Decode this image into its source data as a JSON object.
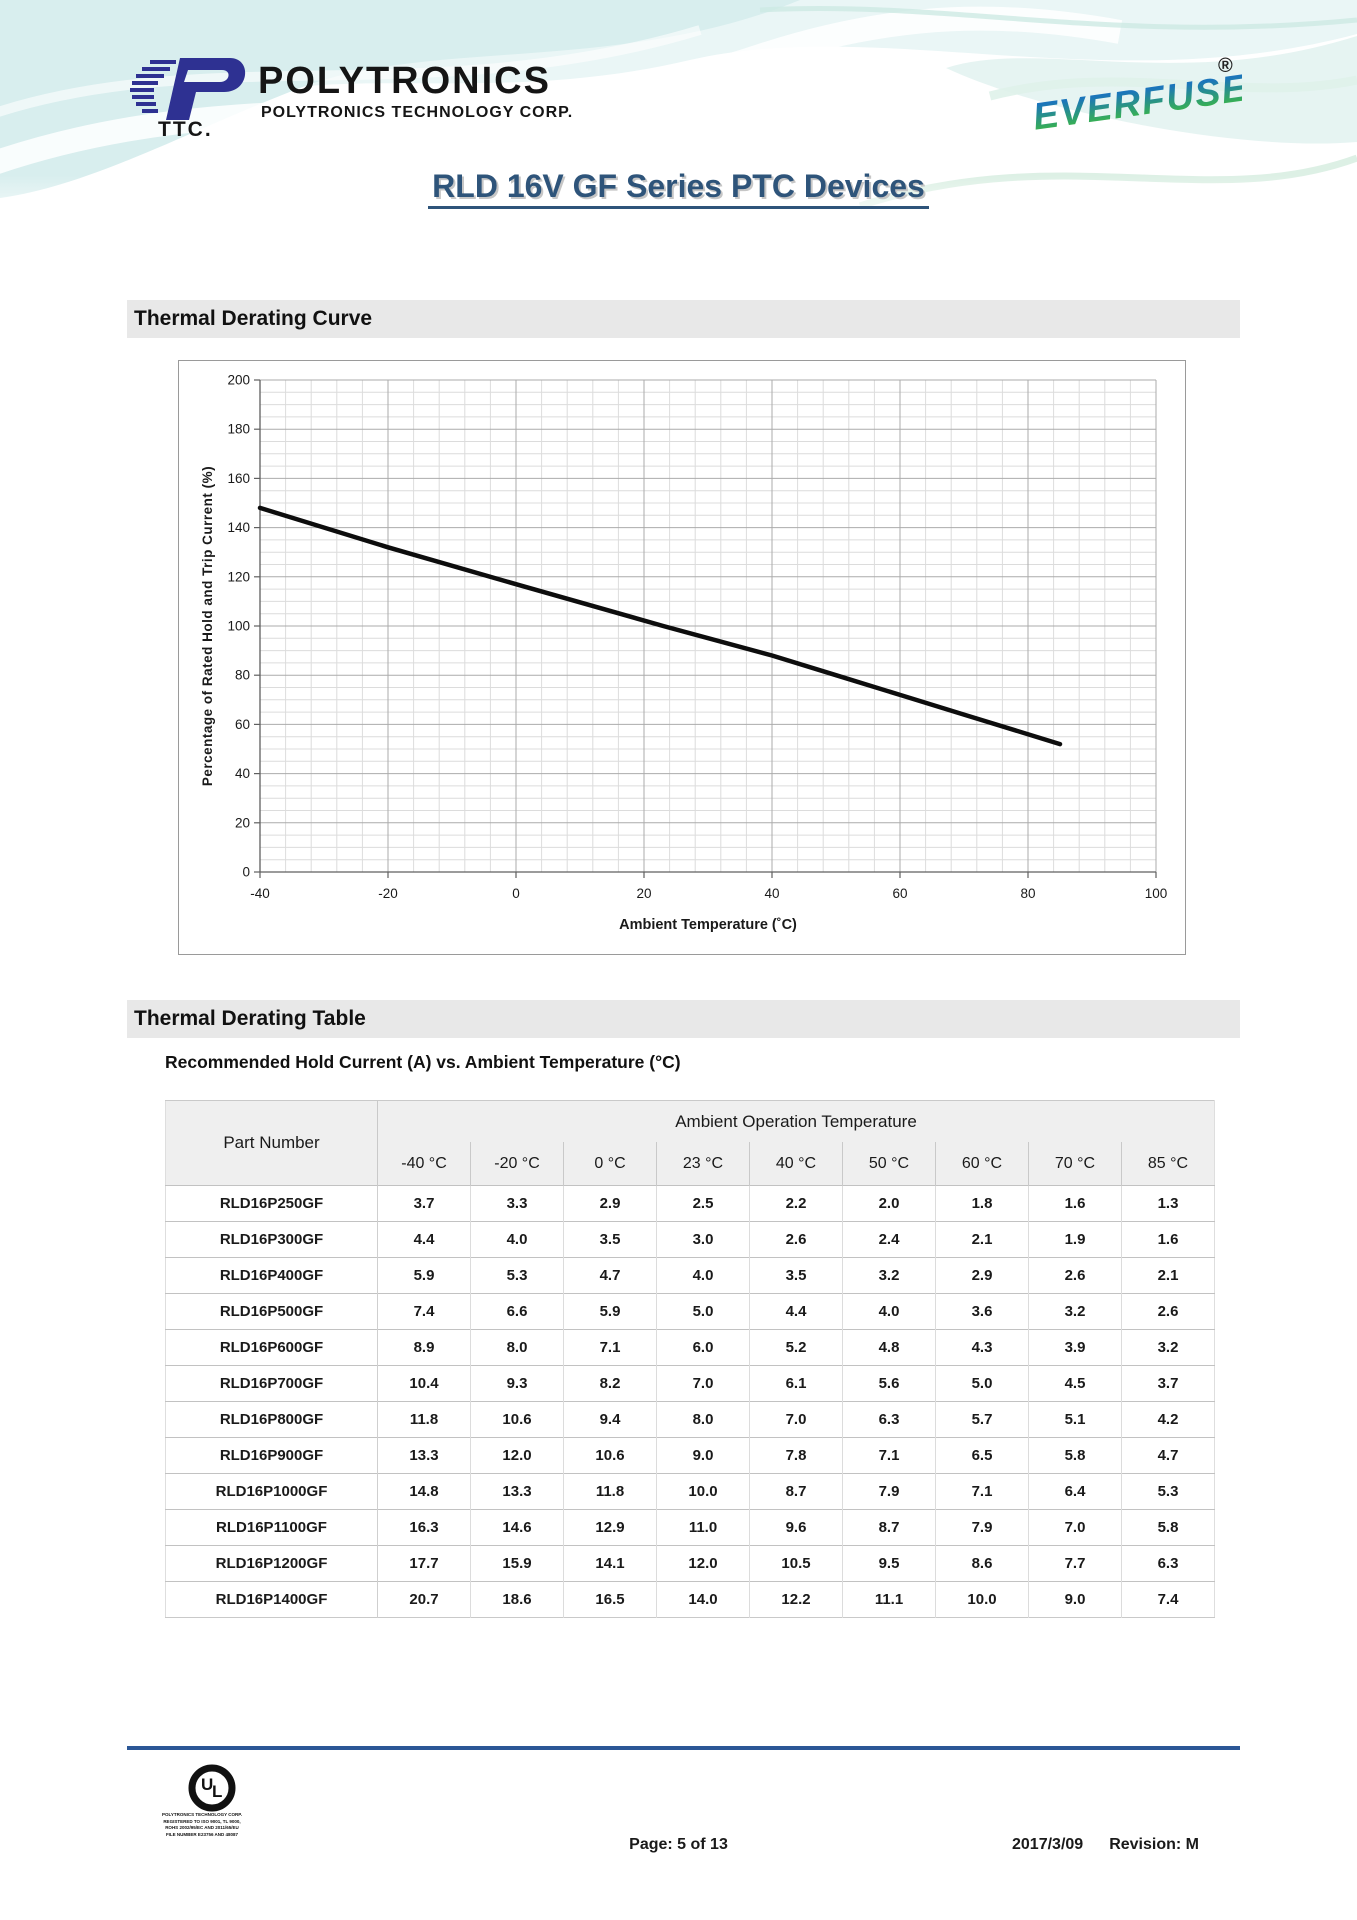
{
  "header": {
    "brand": "POLYTRONICS",
    "brand_sub": "POLYTRONICS TECHNOLOGY CORP.",
    "brand_abbr": "TTC.",
    "everfuse": "EVERFUSE",
    "registered_mark": "®",
    "title": "RLD 16V GF Series PTC Devices"
  },
  "sections": {
    "curve_heading": "Thermal Derating Curve",
    "table_heading": "Thermal Derating Table",
    "table_subtitle": "Recommended Hold Current (A) vs. Ambient Temperature (°C)"
  },
  "chart_data": {
    "type": "line",
    "title": "",
    "xlabel": "Ambient Temperature (˚C)",
    "ylabel": "Percentage of Rated Hold and Trip Current (%)",
    "xlim": [
      -40,
      100
    ],
    "ylim": [
      0,
      200
    ],
    "x_major": 20,
    "x_minor": 4,
    "y_major": 20,
    "y_minor": 5,
    "grid": true,
    "legend": false,
    "series": [
      {
        "name": "derating-line",
        "x": [
          -40,
          -20,
          0,
          23,
          40,
          50,
          60,
          70,
          85
        ],
        "values": [
          148,
          132,
          117,
          100,
          88,
          80,
          72,
          64,
          52
        ]
      }
    ]
  },
  "table": {
    "col1_header": "Part Number",
    "group_header": "Ambient Operation Temperature",
    "temp_headers": [
      "-40 °C",
      "-20 °C",
      "0 °C",
      "23 °C",
      "40 °C",
      "50 °C",
      "60 °C",
      "70 °C",
      "85 °C"
    ],
    "rows": [
      {
        "part": "RLD16P250GF",
        "values": [
          "3.7",
          "3.3",
          "2.9",
          "2.5",
          "2.2",
          "2.0",
          "1.8",
          "1.6",
          "1.3"
        ]
      },
      {
        "part": "RLD16P300GF",
        "values": [
          "4.4",
          "4.0",
          "3.5",
          "3.0",
          "2.6",
          "2.4",
          "2.1",
          "1.9",
          "1.6"
        ]
      },
      {
        "part": "RLD16P400GF",
        "values": [
          "5.9",
          "5.3",
          "4.7",
          "4.0",
          "3.5",
          "3.2",
          "2.9",
          "2.6",
          "2.1"
        ]
      },
      {
        "part": "RLD16P500GF",
        "values": [
          "7.4",
          "6.6",
          "5.9",
          "5.0",
          "4.4",
          "4.0",
          "3.6",
          "3.2",
          "2.6"
        ]
      },
      {
        "part": "RLD16P600GF",
        "values": [
          "8.9",
          "8.0",
          "7.1",
          "6.0",
          "5.2",
          "4.8",
          "4.3",
          "3.9",
          "3.2"
        ]
      },
      {
        "part": "RLD16P700GF",
        "values": [
          "10.4",
          "9.3",
          "8.2",
          "7.0",
          "6.1",
          "5.6",
          "5.0",
          "4.5",
          "3.7"
        ]
      },
      {
        "part": "RLD16P800GF",
        "values": [
          "11.8",
          "10.6",
          "9.4",
          "8.0",
          "7.0",
          "6.3",
          "5.7",
          "5.1",
          "4.2"
        ]
      },
      {
        "part": "RLD16P900GF",
        "values": [
          "13.3",
          "12.0",
          "10.6",
          "9.0",
          "7.8",
          "7.1",
          "6.5",
          "5.8",
          "4.7"
        ]
      },
      {
        "part": "RLD16P1000GF",
        "values": [
          "14.8",
          "13.3",
          "11.8",
          "10.0",
          "8.7",
          "7.9",
          "7.1",
          "6.4",
          "5.3"
        ]
      },
      {
        "part": "RLD16P1100GF",
        "values": [
          "16.3",
          "14.6",
          "12.9",
          "11.0",
          "9.6",
          "8.7",
          "7.9",
          "7.0",
          "5.8"
        ]
      },
      {
        "part": "RLD16P1200GF",
        "values": [
          "17.7",
          "15.9",
          "14.1",
          "12.0",
          "10.5",
          "9.5",
          "8.6",
          "7.7",
          "6.3"
        ]
      },
      {
        "part": "RLD16P1400GF",
        "values": [
          "20.7",
          "18.6",
          "16.5",
          "14.0",
          "12.2",
          "11.1",
          "10.0",
          "9.0",
          "7.4"
        ]
      }
    ]
  },
  "footer": {
    "page_text": "Page: 5 of 13",
    "date": "2017/3/09",
    "revision": "Revision: M",
    "ul_label": "UL",
    "ul_lines": [
      "POLYTRONICS TECHNOLOGY CORP.",
      "REGISTERED TO ISO 9001, TL 9000,",
      "ROHS 2002/95/EC AND 2011/65/EU",
      "FILE NUMBER E23756 AND 48087"
    ]
  },
  "colors": {
    "title_blue": "#2e547a",
    "footer_rule": "#2b5796",
    "logo_navy": "#2e3192",
    "everfuse_blue": "#1b75bb",
    "everfuse_green": "#3ab54a",
    "section_bar_gray": "#e8e8e8",
    "line_black": "#0d0d0d"
  }
}
